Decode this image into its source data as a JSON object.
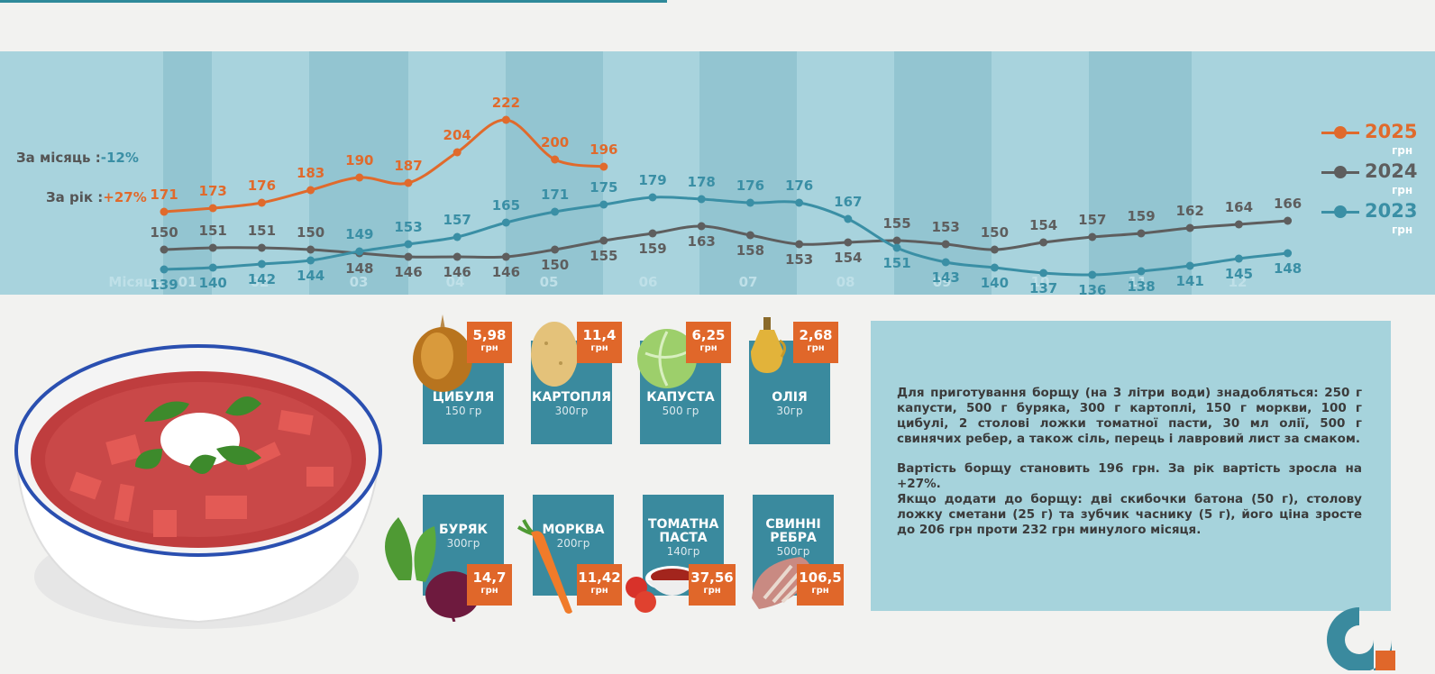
{
  "stats": {
    "month_label": "За місяць :",
    "month_value": "-12%",
    "year_label": "За рік :",
    "year_value": "+27%"
  },
  "legend": [
    {
      "year": "2025",
      "unit": "грн",
      "color": "#e06a2c"
    },
    {
      "year": "2024",
      "unit": "грн",
      "color": "#5e5e5e"
    },
    {
      "year": "2023",
      "unit": "грн",
      "color": "#3a8fa5"
    }
  ],
  "chart_data": {
    "type": "line",
    "title": "",
    "xlabel": "Місяць",
    "ylabel": "грн",
    "x_tick_labels": [
      "01",
      "02",
      "03",
      "04",
      "05",
      "06",
      "07",
      "08",
      "09",
      "10",
      "11",
      "12"
    ],
    "points_per_month": 2,
    "series": [
      {
        "name": "2025",
        "color": "#e06a2c",
        "values": [
          171,
          173,
          176,
          183,
          190,
          187,
          204,
          222,
          200,
          196
        ]
      },
      {
        "name": "2024",
        "color": "#5e5e5e",
        "values": [
          150,
          151,
          151,
          150,
          148,
          146,
          146,
          146,
          150,
          155,
          159,
          163,
          158,
          153,
          154,
          155,
          153,
          150,
          154,
          157,
          159,
          162,
          164,
          166
        ]
      },
      {
        "name": "2023",
        "color": "#3a8fa5",
        "values": [
          139,
          140,
          142,
          144,
          149,
          153,
          157,
          165,
          171,
          175,
          179,
          178,
          176,
          176,
          167,
          151,
          143,
          140,
          137,
          136,
          138,
          141,
          145,
          148
        ]
      }
    ]
  },
  "ingredients": [
    {
      "name": "ЦИБУЛЯ",
      "qty": "150 гр",
      "price": "5,98",
      "unit": "грн"
    },
    {
      "name": "КАРТОПЛЯ",
      "qty": "300гр",
      "price": "11,4",
      "unit": "грн"
    },
    {
      "name": "КАПУСТА",
      "qty": "500 гр",
      "price": "6,25",
      "unit": "грн"
    },
    {
      "name": "ОЛІЯ",
      "qty": "30гр",
      "price": "2,68",
      "unit": "грн"
    },
    {
      "name": "БУРЯК",
      "qty": "300гр",
      "price": "14,7",
      "unit": "грн"
    },
    {
      "name": "МОРКВА",
      "qty": "200гр",
      "price": "11,42",
      "unit": "грн"
    },
    {
      "name": "ТОМАТНА ПАСТА",
      "qty": "140гр",
      "price": "37,56",
      "unit": "грн"
    },
    {
      "name": "СВИННІ РЕБРА",
      "qty": "500гр",
      "price": "106,5",
      "unit": "грн"
    }
  ],
  "text": {
    "p1": "Для приготування борщу (на 3 літри води) знадобляться: 250 г капусти, 500 г буряка, 300 г картоплі, 150 г моркви, 100 г цибулі, 2 столові ложки томатної пасти, 30 мл олії, 500 г свинячих ребер, а також сіль, перець і лавровий лист за смаком.",
    "p2": "Вартість борщу становить 196 грн. За рік вартість зросла на +27%.",
    "p3": "Якщо додати до борщу: дві скибочки батона (50 г), столову ложку сметани (25 г) та зубчик часнику (5 г), його ціна зросте до 206 грн проти 232 грн минулого місяця."
  }
}
